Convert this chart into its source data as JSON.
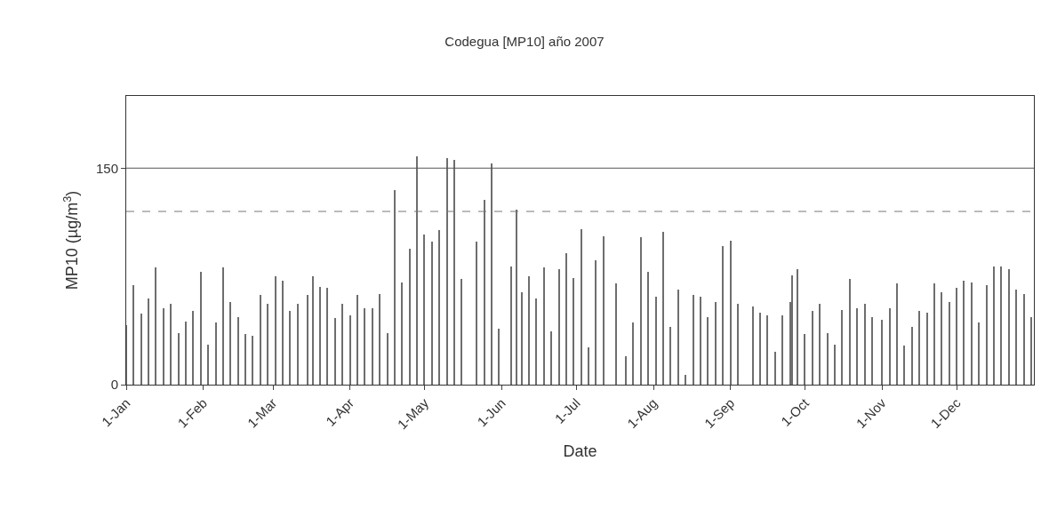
{
  "chart_data": {
    "type": "bar",
    "title": "Codegua [MP10] año 2007",
    "xlabel": "Date",
    "ylabel": "MP10 (µg/m$^{3}$)",
    "x": [
      "2007-01-01",
      "2007-01-04",
      "2007-01-07",
      "2007-01-10",
      "2007-01-13",
      "2007-01-16",
      "2007-01-19",
      "2007-01-22",
      "2007-01-25",
      "2007-01-28",
      "2007-01-31",
      "2007-02-03",
      "2007-02-06",
      "2007-02-09",
      "2007-02-12",
      "2007-02-15",
      "2007-02-18",
      "2007-02-21",
      "2007-02-24",
      "2007-02-27",
      "2007-03-02",
      "2007-03-05",
      "2007-03-08",
      "2007-03-11",
      "2007-03-15",
      "2007-03-17",
      "2007-03-20",
      "2007-03-23",
      "2007-03-26",
      "2007-03-29",
      "2007-04-01",
      "2007-04-04",
      "2007-04-07",
      "2007-04-10",
      "2007-04-13",
      "2007-04-16",
      "2007-04-19",
      "2007-04-22",
      "2007-04-25",
      "2007-04-28",
      "2007-05-01",
      "2007-05-04",
      "2007-05-07",
      "2007-05-10",
      "2007-05-13",
      "2007-05-16",
      "2007-05-22",
      "2007-05-25",
      "2007-05-28",
      "2007-05-31",
      "2007-06-05",
      "2007-06-07",
      "2007-06-09",
      "2007-06-12",
      "2007-06-15",
      "2007-06-18",
      "2007-06-21",
      "2007-06-24",
      "2007-06-27",
      "2007-06-30",
      "2007-07-03",
      "2007-07-06",
      "2007-07-09",
      "2007-07-12",
      "2007-07-17",
      "2007-07-21",
      "2007-07-24",
      "2007-07-27",
      "2007-07-30",
      "2007-08-02",
      "2007-08-05",
      "2007-08-08",
      "2007-08-11",
      "2007-08-14",
      "2007-08-17",
      "2007-08-20",
      "2007-08-23",
      "2007-08-26",
      "2007-08-29",
      "2007-09-01",
      "2007-09-04",
      "2007-09-10",
      "2007-09-13",
      "2007-09-16",
      "2007-09-19",
      "2007-09-22",
      "2007-09-25",
      "2007-09-26",
      "2007-09-28",
      "2007-10-01",
      "2007-10-04",
      "2007-10-07",
      "2007-10-10",
      "2007-10-13",
      "2007-10-16",
      "2007-10-19",
      "2007-10-22",
      "2007-10-25",
      "2007-10-28",
      "2007-11-01",
      "2007-11-04",
      "2007-11-07",
      "2007-11-10",
      "2007-11-13",
      "2007-11-16",
      "2007-11-19",
      "2007-11-22",
      "2007-11-25",
      "2007-11-28",
      "2007-12-01",
      "2007-12-04",
      "2007-12-07",
      "2007-12-10",
      "2007-12-13",
      "2007-12-16",
      "2007-12-19",
      "2007-12-22",
      "2007-12-25",
      "2007-12-28",
      "2007-12-31"
    ],
    "values": [
      41,
      69,
      49,
      60,
      81,
      53,
      56,
      36,
      44,
      51,
      78,
      28,
      43,
      81,
      57,
      47,
      35,
      34,
      62,
      56,
      75,
      72,
      51,
      56,
      62,
      75,
      68,
      67,
      46,
      56,
      48,
      62,
      53,
      53,
      63,
      36,
      135,
      71,
      94,
      158,
      104,
      99,
      107,
      157,
      156,
      73,
      99,
      128,
      153,
      39,
      82,
      121,
      64,
      75,
      60,
      81,
      37,
      80,
      91,
      74,
      108,
      26,
      86,
      103,
      70,
      20,
      43,
      102,
      78,
      61,
      106,
      40,
      66,
      7,
      62,
      61,
      47,
      57,
      96,
      100,
      56,
      54,
      50,
      48,
      23,
      48,
      57,
      76,
      80,
      35,
      51,
      56,
      36,
      28,
      52,
      73,
      53,
      56,
      47,
      45,
      53,
      70,
      27,
      40,
      51,
      50,
      70,
      64,
      57,
      67,
      72,
      71,
      43,
      69,
      82,
      82,
      80,
      66,
      63,
      47
    ],
    "color": "#6e6e6e",
    "ylim": [
      0,
      200
    ],
    "yticks": [
      0,
      150
    ],
    "xlim": [
      "2007-01-01",
      "2008-01-01"
    ],
    "xticks": [
      {
        "value": "2007-01-01",
        "label": "1-Jan"
      },
      {
        "value": "2007-02-01",
        "label": "1-Feb"
      },
      {
        "value": "2007-03-01",
        "label": "1-Mar"
      },
      {
        "value": "2007-04-01",
        "label": "1-Apr"
      },
      {
        "value": "2007-05-01",
        "label": "1-May"
      },
      {
        "value": "2007-06-01",
        "label": "1-Jun"
      },
      {
        "value": "2007-07-01",
        "label": "1-Jul"
      },
      {
        "value": "2007-08-01",
        "label": "1-Aug"
      },
      {
        "value": "2007-09-01",
        "label": "1-Sep"
      },
      {
        "value": "2007-10-01",
        "label": "1-Oct"
      },
      {
        "value": "2007-11-01",
        "label": "1-Nov"
      },
      {
        "value": "2007-12-01",
        "label": "1-Dec"
      }
    ],
    "ref_lines": [
      {
        "axis": "y",
        "value": 150,
        "color": "#555555",
        "line_style": "solid"
      },
      {
        "axis": "y",
        "value": 120,
        "color": "#777777",
        "line_style": "dashed"
      }
    ]
  }
}
